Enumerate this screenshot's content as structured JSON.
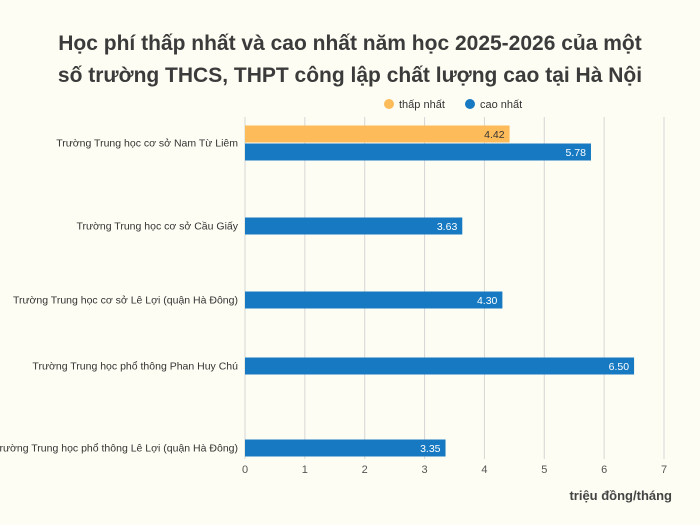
{
  "chart_data": {
    "type": "bar",
    "orientation": "horizontal",
    "title_lines": [
      "Học phí thấp nhất và cao nhất năm học 2025-2026 của một",
      "số trường THCS, THPT công lập chất lượng cao tại Hà Nội"
    ],
    "xlabel": "triệu đồng/tháng",
    "xlim": [
      0,
      7
    ],
    "xticks": [
      0,
      1,
      2,
      3,
      4,
      5,
      6,
      7
    ],
    "grid": true,
    "legend_position": "top",
    "categories": [
      "Trường Trung học cơ sở Nam Từ Liêm",
      "Trường Trung học cơ sở Cầu Giấy",
      "Trường Trung học cơ sở Lê Lợi (quận Hà Đông)",
      "Trường Trung học phổ thông Phan Huy Chú",
      "Trường Trung học phổ thông Lê Lợi (quận Hà Đông)"
    ],
    "series": [
      {
        "name": "thấp nhất",
        "color": "#fdbb5a",
        "values": [
          4.42,
          null,
          null,
          null,
          null
        ]
      },
      {
        "name": "cao nhất",
        "color": "#1679c1",
        "values": [
          5.78,
          3.63,
          4.3,
          6.5,
          3.35
        ]
      }
    ]
  }
}
